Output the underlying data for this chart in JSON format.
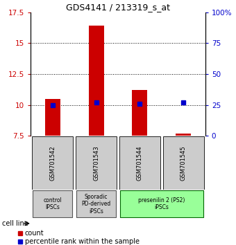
{
  "title": "GDS4141 / 213319_s_at",
  "samples": [
    "GSM701542",
    "GSM701543",
    "GSM701544",
    "GSM701545"
  ],
  "count_values": [
    10.5,
    16.4,
    11.2,
    7.7
  ],
  "percentile_values": [
    25,
    27,
    26,
    27
  ],
  "ylim_left": [
    7.5,
    17.5
  ],
  "ylim_right": [
    0,
    100
  ],
  "yticks_left": [
    7.5,
    10,
    12.5,
    15,
    17.5
  ],
  "yticks_right": [
    0,
    25,
    50,
    75,
    100
  ],
  "ytick_labels_left": [
    "7.5",
    "10",
    "12.5",
    "15",
    "17.5"
  ],
  "ytick_labels_right": [
    "0",
    "25",
    "50",
    "75",
    "100%"
  ],
  "bar_color": "#cc0000",
  "dot_color": "#0000cc",
  "groups": [
    {
      "label": "control\nIPSCs",
      "color": "#cccccc",
      "indices": [
        0
      ],
      "border": "#555555"
    },
    {
      "label": "Sporadic\nPD-derived\niPSCs",
      "color": "#cccccc",
      "indices": [
        1
      ],
      "border": "#555555"
    },
    {
      "label": "presenilin 2 (PS2)\niPSCs",
      "color": "#99ff99",
      "indices": [
        2,
        3
      ],
      "border": "#006600"
    }
  ],
  "cell_line_label": "cell line",
  "legend_count_label": "count",
  "legend_percentile_label": "percentile rank within the sample",
  "bar_width": 0.35,
  "sample_box_color": "#cccccc"
}
